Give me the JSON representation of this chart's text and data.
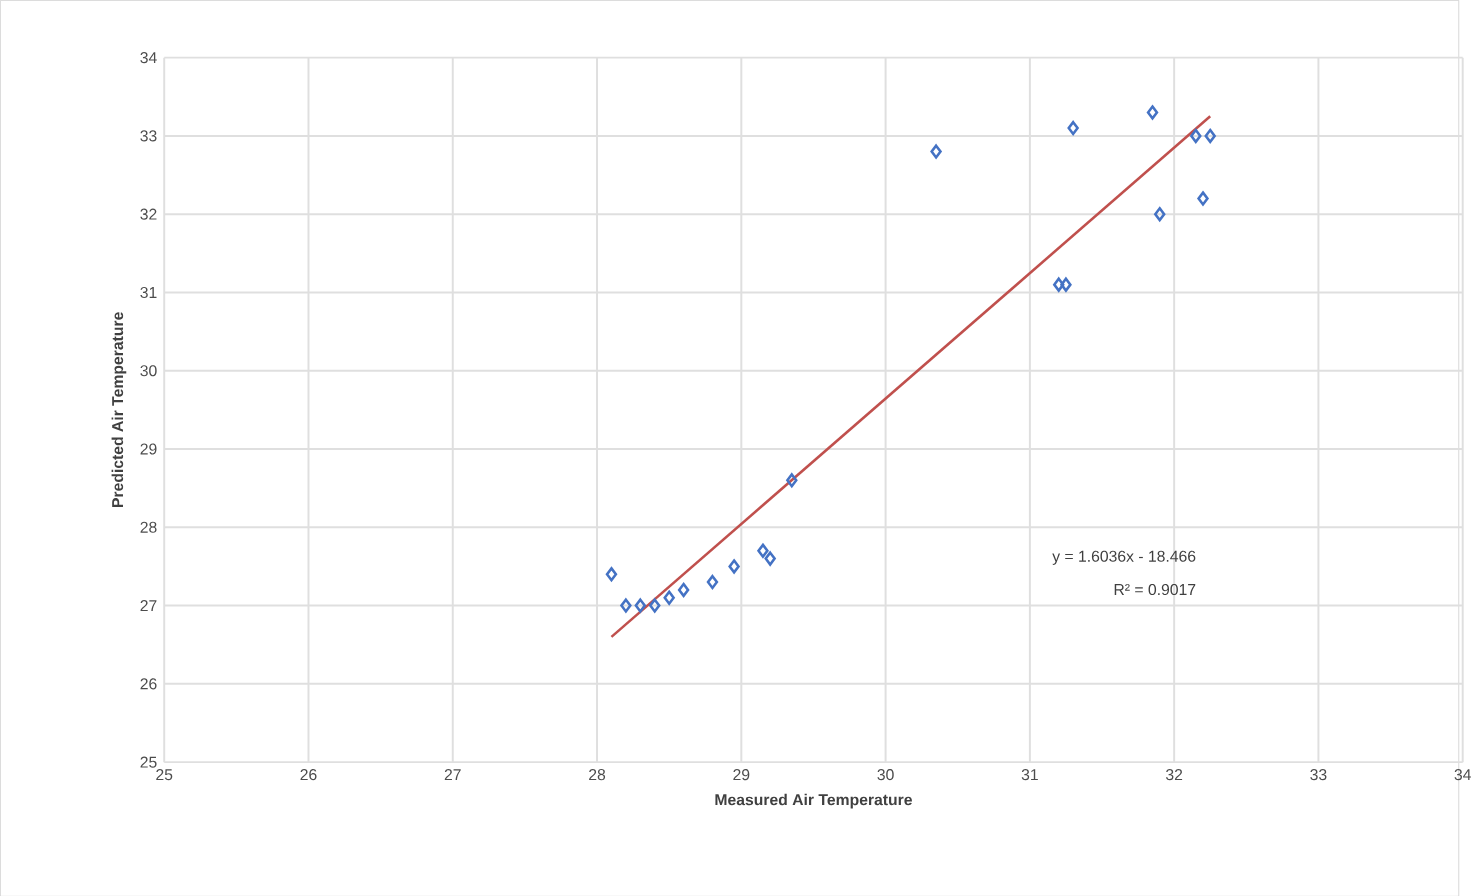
{
  "chart_data": {
    "type": "scatter",
    "xlabel": "Measured Air Temperature",
    "ylabel": "Predicted Air Temperature",
    "xlim": [
      25,
      34
    ],
    "ylim": [
      25,
      34
    ],
    "xticks": [
      25,
      26,
      27,
      28,
      29,
      30,
      31,
      32,
      33,
      34
    ],
    "yticks": [
      25,
      26,
      27,
      28,
      29,
      30,
      31,
      32,
      33,
      34
    ],
    "grid": true,
    "series": [
      {
        "marker": "diamond",
        "color": "#4472c4",
        "x": [
          28.1,
          28.2,
          28.3,
          28.4,
          28.5,
          28.6,
          28.8,
          28.95,
          29.15,
          29.2,
          29.35,
          30.35,
          31.3,
          31.85,
          31.2,
          31.25,
          31.9,
          32.15,
          32.25,
          32.2
        ],
        "values": [
          27.4,
          27.0,
          27.0,
          27.0,
          27.1,
          27.2,
          27.3,
          27.5,
          27.7,
          27.6,
          28.6,
          32.8,
          33.1,
          33.3,
          31.1,
          31.1,
          32.0,
          33.0,
          33.0,
          32.2
        ]
      },
      {
        "type": "line",
        "color": "#c0504d",
        "x": [
          28.1,
          32.25
        ],
        "values": [
          26.6,
          33.25
        ]
      }
    ],
    "annotations": [
      "y = 1.6036x - 18.466",
      "R² = 0.9017"
    ]
  }
}
